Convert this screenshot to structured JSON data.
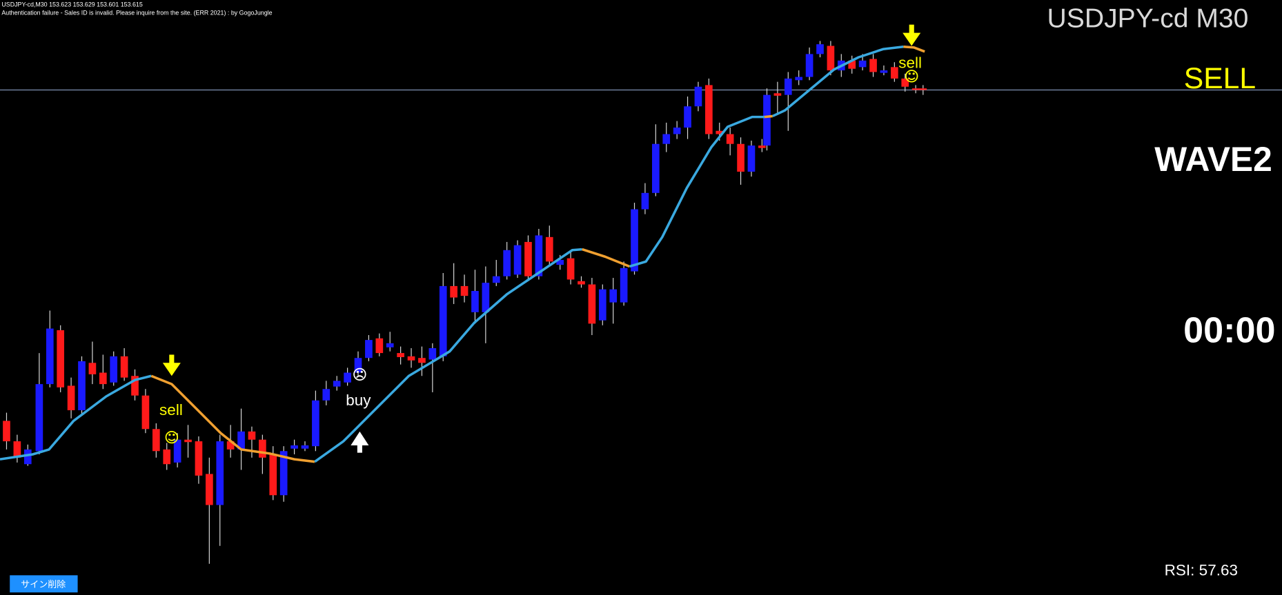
{
  "header": {
    "symbol_info": "USDJPY-cd,M30  153.623 153.629 153.601 153.615",
    "message": "Authentication failure - Sales ID is invalid. Please inquire from the site. (ERR 2021) : by GogoJungle"
  },
  "overlay": {
    "symbol_title": "USDJPY-cd M30",
    "signal": "SELL",
    "wave": "WAVE2",
    "timer": "00:00",
    "rsi": "RSI: 57.63"
  },
  "signals": [
    {
      "label": "sell"
    },
    {
      "label": "buy"
    },
    {
      "label": "sell"
    }
  ],
  "button": {
    "label": "サイン削除"
  }
}
